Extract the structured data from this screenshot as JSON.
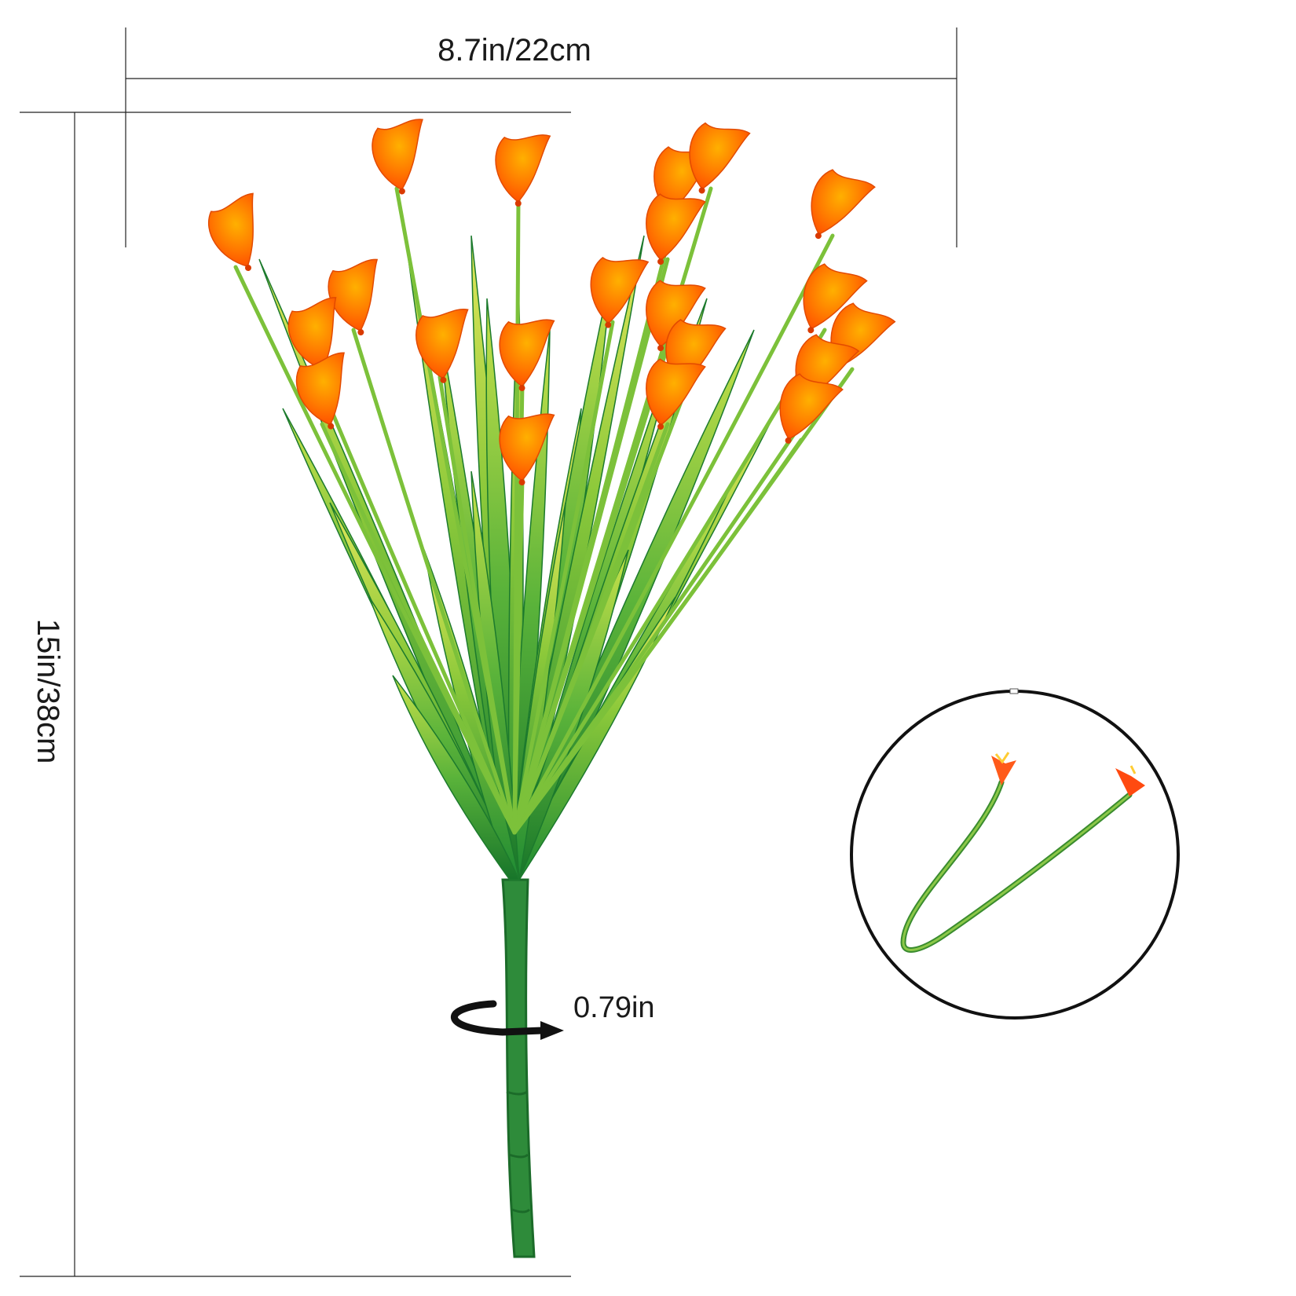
{
  "dimensions": {
    "width_label": "8.7in/22cm",
    "height_label": "15in/38cm",
    "stem_label": "0.79in"
  },
  "product": {
    "flower_color": "#ff6a00",
    "flower_tip_color": "#ffb400",
    "leaf_light_color": "#b8dc3c",
    "leaf_dark_color": "#1f8a2e",
    "stem_color": "#2e8b3a"
  },
  "detail_inset": {
    "stems": 2
  }
}
